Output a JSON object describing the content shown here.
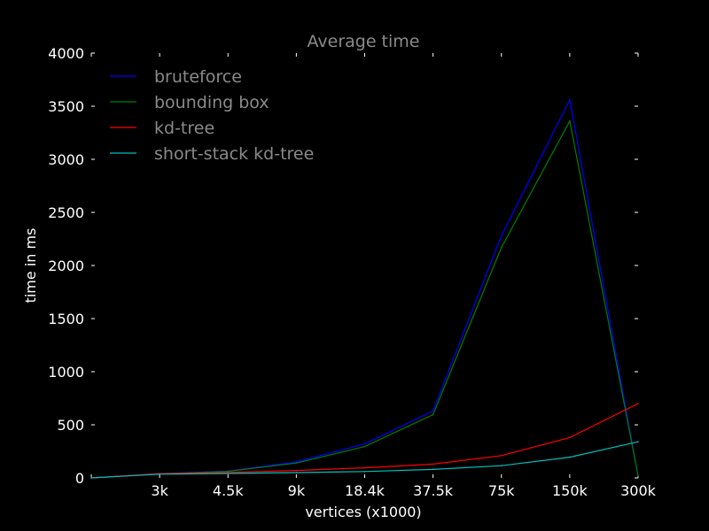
{
  "chart_data": {
    "type": "line",
    "title": "Average time",
    "xlabel": "vertices (x1000)",
    "ylabel": "time in ms",
    "ylim": [
      0,
      4000
    ],
    "yticks": [
      0,
      500,
      1000,
      1500,
      2000,
      2500,
      3000,
      3500,
      4000
    ],
    "categories": [
      "",
      "3k",
      "4.5k",
      "9k",
      "18.4k",
      "37.5k",
      "75k",
      "150k",
      "300k"
    ],
    "grid": false,
    "legend_position": "top-left",
    "series": [
      {
        "name": "bruteforce",
        "color": "#0000ff",
        "values": [
          0,
          40,
          65,
          150,
          320,
          630,
          2280,
          3560,
          20
        ]
      },
      {
        "name": "bounding box",
        "color": "#008000",
        "values": [
          0,
          38,
          62,
          140,
          295,
          595,
          2170,
          3360,
          20
        ]
      },
      {
        "name": "kd-tree",
        "color": "#ff0000",
        "values": [
          0,
          40,
          52,
          70,
          95,
          130,
          210,
          380,
          700
        ]
      },
      {
        "name": "short-stack kd-tree",
        "color": "#00bfbf",
        "values": [
          0,
          35,
          42,
          50,
          60,
          80,
          115,
          195,
          340
        ]
      }
    ]
  }
}
